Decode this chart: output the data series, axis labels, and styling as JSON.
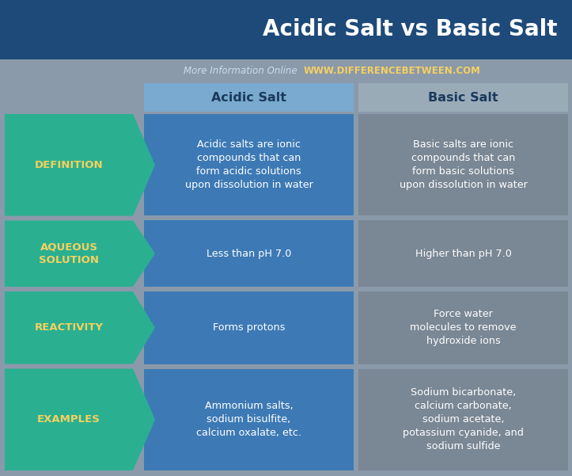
{
  "title": "Acidic Salt vs Basic Salt",
  "subtitle_gray": "More Information Online",
  "subtitle_url": "WWW.DIFFERENCEBETWEEN.COM",
  "col1_header": "Acidic Salt",
  "col2_header": "Basic Salt",
  "rows": [
    {
      "label": "DEFINITION",
      "col1": "Acidic salts are ionic\ncompounds that can\nform acidic solutions\nupon dissolution in water",
      "col2": "Basic salts are ionic\ncompounds that can\nform basic solutions\nupon dissolution in water"
    },
    {
      "label": "AQUEOUS\nSOLUTION",
      "col1": "Less than pH 7.0",
      "col2": "Higher than pH 7.0"
    },
    {
      "label": "REACTIVITY",
      "col1": "Forms protons",
      "col2": "Force water\nmolecules to remove\nhydroxide ions"
    },
    {
      "label": "EXAMPLES",
      "col1": "Ammonium salts,\nsodium bisulfite,\ncalcium oxalate, etc.",
      "col2": "Sodium bicarbonate,\ncalcium carbonate,\nsodium acetate,\npotassium cyanide, and\nsodium sulfide"
    }
  ],
  "bg_color": "#8a9aaa",
  "title_bg": "#1e4a7a",
  "col1_bg": "#3d7ab5",
  "col2_bg": "#7a8794",
  "col1_hdr_bg": "#7aaad0",
  "col2_hdr_bg": "#9aabb8",
  "label_bg": "#2ab090",
  "label_text_color": "#f5d060",
  "col_text_color": "#ffffff",
  "header_text_color": "#1a3a5c",
  "title_text_color": "#ffffff",
  "subtitle_gray_color": "#ccddee",
  "url_color": "#f5d060",
  "figw": 7.23,
  "figh": 6.01,
  "dpi": 100
}
